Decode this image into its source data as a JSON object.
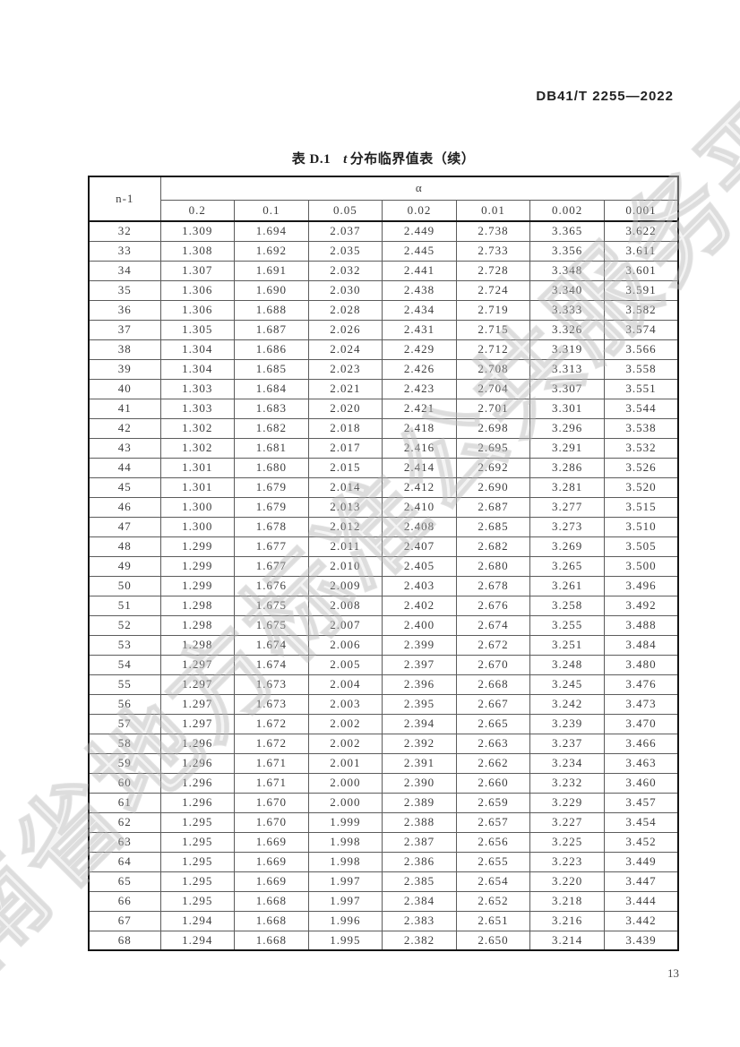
{
  "page": {
    "doc_code": "DB41/T 2255—2022",
    "page_number": "13",
    "watermark": "河南省地方标准公共服务平台"
  },
  "table": {
    "title_prefix": "表 D.1",
    "title_italic": "t",
    "title_suffix": "分布临界值表（续）",
    "corner_header": "n-1",
    "alpha_header": "α",
    "alpha_levels": [
      "0.2",
      "0.1",
      "0.05",
      "0.02",
      "0.01",
      "0.002",
      "0.001"
    ],
    "rows": [
      {
        "df": "32",
        "values": [
          "1.309",
          "1.694",
          "2.037",
          "2.449",
          "2.738",
          "3.365",
          "3.622"
        ]
      },
      {
        "df": "33",
        "values": [
          "1.308",
          "1.692",
          "2.035",
          "2.445",
          "2.733",
          "3.356",
          "3.611"
        ]
      },
      {
        "df": "34",
        "values": [
          "1.307",
          "1.691",
          "2.032",
          "2.441",
          "2.728",
          "3.348",
          "3.601"
        ]
      },
      {
        "df": "35",
        "values": [
          "1.306",
          "1.690",
          "2.030",
          "2.438",
          "2.724",
          "3.340",
          "3.591"
        ]
      },
      {
        "df": "36",
        "values": [
          "1.306",
          "1.688",
          "2.028",
          "2.434",
          "2.719",
          "3.333",
          "3.582"
        ]
      },
      {
        "df": "37",
        "values": [
          "1.305",
          "1.687",
          "2.026",
          "2.431",
          "2.715",
          "3.326",
          "3.574"
        ]
      },
      {
        "df": "38",
        "values": [
          "1.304",
          "1.686",
          "2.024",
          "2.429",
          "2.712",
          "3.319",
          "3.566"
        ]
      },
      {
        "df": "39",
        "values": [
          "1.304",
          "1.685",
          "2.023",
          "2.426",
          "2.708",
          "3.313",
          "3.558"
        ]
      },
      {
        "df": "40",
        "values": [
          "1.303",
          "1.684",
          "2.021",
          "2.423",
          "2.704",
          "3.307",
          "3.551"
        ]
      },
      {
        "df": "41",
        "values": [
          "1.303",
          "1.683",
          "2.020",
          "2.421",
          "2.701",
          "3.301",
          "3.544"
        ]
      },
      {
        "df": "42",
        "values": [
          "1.302",
          "1.682",
          "2.018",
          "2.418",
          "2.698",
          "3.296",
          "3.538"
        ]
      },
      {
        "df": "43",
        "values": [
          "1.302",
          "1.681",
          "2.017",
          "2.416",
          "2.695",
          "3.291",
          "3.532"
        ]
      },
      {
        "df": "44",
        "values": [
          "1.301",
          "1.680",
          "2.015",
          "2.414",
          "2.692",
          "3.286",
          "3.526"
        ]
      },
      {
        "df": "45",
        "values": [
          "1.301",
          "1.679",
          "2.014",
          "2.412",
          "2.690",
          "3.281",
          "3.520"
        ]
      },
      {
        "df": "46",
        "values": [
          "1.300",
          "1.679",
          "2.013",
          "2.410",
          "2.687",
          "3.277",
          "3.515"
        ]
      },
      {
        "df": "47",
        "values": [
          "1.300",
          "1.678",
          "2.012",
          "2.408",
          "2.685",
          "3.273",
          "3.510"
        ]
      },
      {
        "df": "48",
        "values": [
          "1.299",
          "1.677",
          "2.011",
          "2.407",
          "2.682",
          "3.269",
          "3.505"
        ]
      },
      {
        "df": "49",
        "values": [
          "1.299",
          "1.677",
          "2.010",
          "2.405",
          "2.680",
          "3.265",
          "3.500"
        ]
      },
      {
        "df": "50",
        "values": [
          "1.299",
          "1.676",
          "2.009",
          "2.403",
          "2.678",
          "3.261",
          "3.496"
        ]
      },
      {
        "df": "51",
        "values": [
          "1.298",
          "1.675",
          "2.008",
          "2.402",
          "2.676",
          "3.258",
          "3.492"
        ]
      },
      {
        "df": "52",
        "values": [
          "1.298",
          "1.675",
          "2.007",
          "2.400",
          "2.674",
          "3.255",
          "3.488"
        ]
      },
      {
        "df": "53",
        "values": [
          "1.298",
          "1.674",
          "2.006",
          "2.399",
          "2.672",
          "3.251",
          "3.484"
        ]
      },
      {
        "df": "54",
        "values": [
          "1.297",
          "1.674",
          "2.005",
          "2.397",
          "2.670",
          "3.248",
          "3.480"
        ]
      },
      {
        "df": "55",
        "values": [
          "1.297",
          "1.673",
          "2.004",
          "2.396",
          "2.668",
          "3.245",
          "3.476"
        ]
      },
      {
        "df": "56",
        "values": [
          "1.297",
          "1.673",
          "2.003",
          "2.395",
          "2.667",
          "3.242",
          "3.473"
        ]
      },
      {
        "df": "57",
        "values": [
          "1.297",
          "1.672",
          "2.002",
          "2.394",
          "2.665",
          "3.239",
          "3.470"
        ]
      },
      {
        "df": "58",
        "values": [
          "1.296",
          "1.672",
          "2.002",
          "2.392",
          "2.663",
          "3.237",
          "3.466"
        ]
      },
      {
        "df": "59",
        "values": [
          "1.296",
          "1.671",
          "2.001",
          "2.391",
          "2.662",
          "3.234",
          "3.463"
        ]
      },
      {
        "df": "60",
        "values": [
          "1.296",
          "1.671",
          "2.000",
          "2.390",
          "2.660",
          "3.232",
          "3.460"
        ]
      },
      {
        "df": "61",
        "values": [
          "1.296",
          "1.670",
          "2.000",
          "2.389",
          "2.659",
          "3.229",
          "3.457"
        ]
      },
      {
        "df": "62",
        "values": [
          "1.295",
          "1.670",
          "1.999",
          "2.388",
          "2.657",
          "3.227",
          "3.454"
        ]
      },
      {
        "df": "63",
        "values": [
          "1.295",
          "1.669",
          "1.998",
          "2.387",
          "2.656",
          "3.225",
          "3.452"
        ]
      },
      {
        "df": "64",
        "values": [
          "1.295",
          "1.669",
          "1.998",
          "2.386",
          "2.655",
          "3.223",
          "3.449"
        ]
      },
      {
        "df": "65",
        "values": [
          "1.295",
          "1.669",
          "1.997",
          "2.385",
          "2.654",
          "3.220",
          "3.447"
        ]
      },
      {
        "df": "66",
        "values": [
          "1.295",
          "1.668",
          "1.997",
          "2.384",
          "2.652",
          "3.218",
          "3.444"
        ]
      },
      {
        "df": "67",
        "values": [
          "1.294",
          "1.668",
          "1.996",
          "2.383",
          "2.651",
          "3.216",
          "3.442"
        ]
      },
      {
        "df": "68",
        "values": [
          "1.294",
          "1.668",
          "1.995",
          "2.382",
          "2.650",
          "3.214",
          "3.439"
        ]
      }
    ]
  }
}
